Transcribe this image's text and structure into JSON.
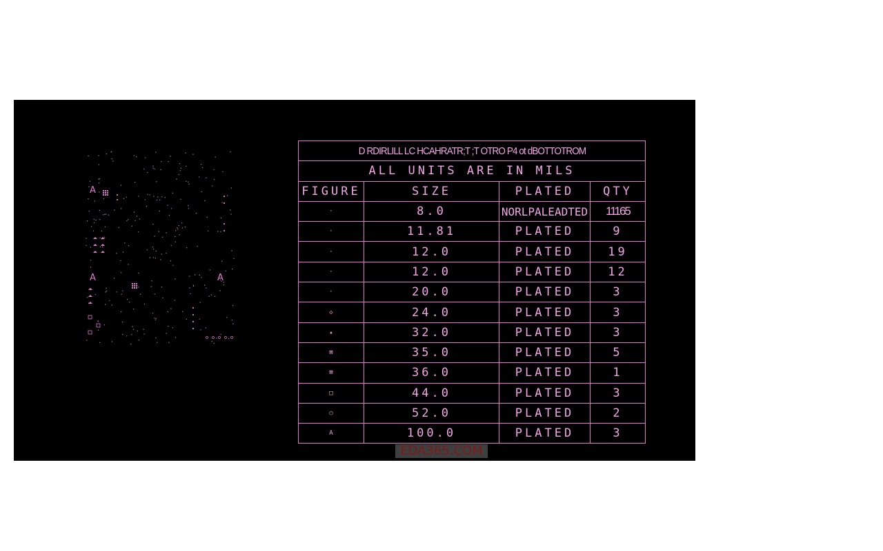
{
  "colors": {
    "background": "#000000",
    "lines": "#e27ad2",
    "text": "#f2a6e6"
  },
  "drill_chart": {
    "title": "D RDIRLILL LC HCAHRATR;T ;T OTRO P4 ot dBOTTOTROM",
    "units_note": "ALL UNITS ARE IN MILS",
    "headers": [
      "FIGURE",
      "SIZE",
      "PLATED",
      "QTY"
    ],
    "rows": [
      {
        "figure": "·",
        "size": "8.0",
        "plated": "NORLPALEADTED",
        "qty": "11165"
      },
      {
        "figure": "·",
        "size": "11.81",
        "plated": "PLATED",
        "qty": "9"
      },
      {
        "figure": "·",
        "size": "12.0",
        "plated": "PLATED",
        "qty": "19"
      },
      {
        "figure": "·",
        "size": "12.0",
        "plated": "PLATED",
        "qty": "12"
      },
      {
        "figure": "·",
        "size": "20.0",
        "plated": "PLATED",
        "qty": "3"
      },
      {
        "figure": "◇",
        "size": "24.0",
        "plated": "PLATED",
        "qty": "3"
      },
      {
        "figure": "▴",
        "size": "32.0",
        "plated": "PLATED",
        "qty": "3"
      },
      {
        "figure": "⊠",
        "size": "35.0",
        "plated": "PLATED",
        "qty": "5"
      },
      {
        "figure": "⊠",
        "size": "36.0",
        "plated": "PLATED",
        "qty": "1"
      },
      {
        "figure": "□",
        "size": "44.0",
        "plated": "PLATED",
        "qty": "3"
      },
      {
        "figure": "○",
        "size": "52.0",
        "plated": "PLATED",
        "qty": "2"
      },
      {
        "figure": "A",
        "size": "100.0",
        "plated": "PLATED",
        "qty": "3"
      }
    ]
  },
  "board": {
    "marker_label": "A"
  },
  "watermark": "EDA365.COM"
}
